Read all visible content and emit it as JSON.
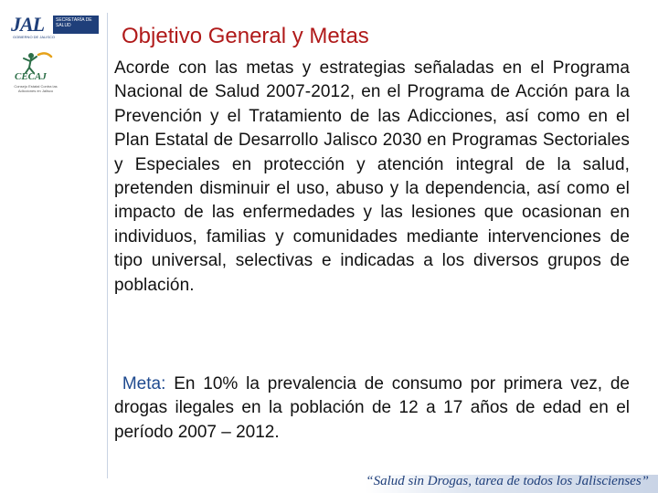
{
  "header": {
    "logo_word": "JAL",
    "logo_badge": "SECRETARÍA DE SALUD",
    "logo_sub": "GOBIERNO DE JALISCO",
    "cecaj_word": "CECAJ",
    "cecaj_sub": "Consejo Estatal Contra las Adicciones en Jalisco"
  },
  "title": "Objetivo General y Metas",
  "body": {
    "paragraph": "Acorde con las metas y estrategias señaladas en el Programa Nacional de Salud 2007-2012, en el Programa de Acción para la Prevención y el Tratamiento de las Adicciones, así como en el Plan Estatal de Desarrollo Jalisco 2030 en Programas Sectoriales y Especiales en protección y atención integral de la salud, pretenden disminuir el uso, abuso y la dependencia, así como el impacto de las enfermedades y las lesiones que ocasionan en individuos, familias y comunidades mediante intervenciones de tipo universal, selectivas e indicadas a los diversos grupos de población.",
    "meta_label": "Meta:",
    "meta_text": " En 10% la prevalencia de consumo por primera vez, de drogas ilegales en la población de 12 a 17 años de edad en el período 2007 – 2012."
  },
  "footer": {
    "slogan": "“Salud sin Drogas, tarea de todos los Jaliscienses”"
  },
  "colors": {
    "title": "#b01a1a",
    "meta_label": "#1f4a8f",
    "brand": "#1f3f7a"
  }
}
